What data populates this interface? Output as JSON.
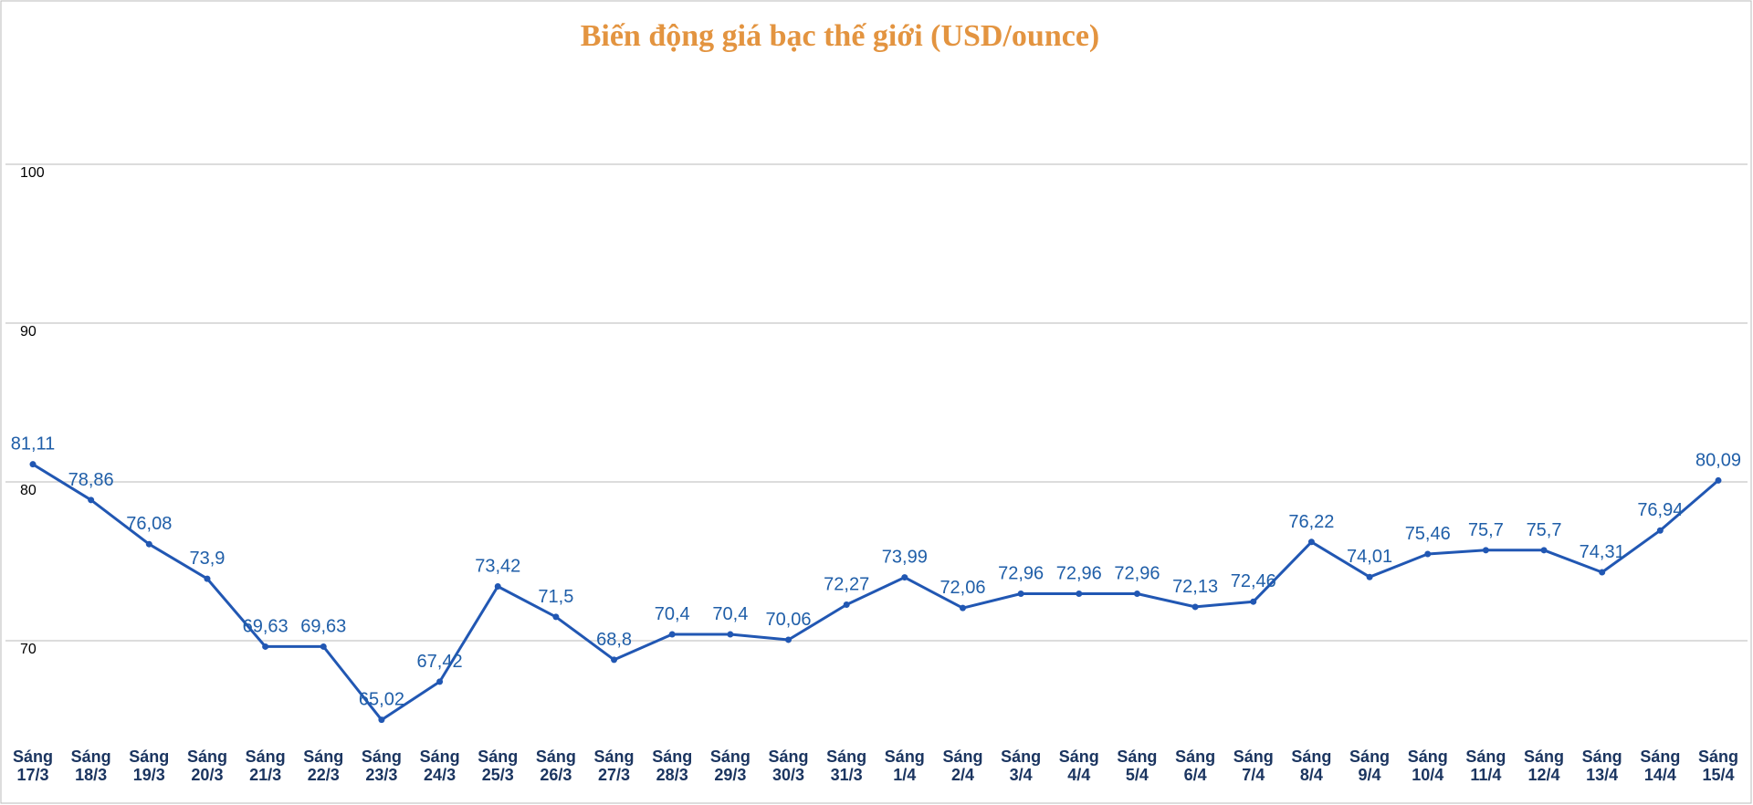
{
  "chart_data": {
    "type": "line",
    "title": "Biến động giá bạc thế giới (USD/ounce)",
    "categories": [
      "Sáng 17/3",
      "Sáng 18/3",
      "Sáng 19/3",
      "Sáng 20/3",
      "Sáng 21/3",
      "Sáng 22/3",
      "Sáng 23/3",
      "Sáng 24/3",
      "Sáng 25/3",
      "Sáng 26/3",
      "Sáng 27/3",
      "Sáng 28/3",
      "Sáng 29/3",
      "Sáng 30/3",
      "Sáng 31/3",
      "Sáng 1/4",
      "Sáng 2/4",
      "Sáng 3/4",
      "Sáng 4/4",
      "Sáng 5/4",
      "Sáng 6/4",
      "Sáng 7/4",
      "Sáng 8/4",
      "Sáng 9/4",
      "Sáng 10/4",
      "Sáng 11/4",
      "Sáng 12/4",
      "Sáng 13/4",
      "Sáng 14/4",
      "Sáng 15/4"
    ],
    "values": [
      81.11,
      78.86,
      76.08,
      73.9,
      69.63,
      69.63,
      65.02,
      67.42,
      73.42,
      71.5,
      68.8,
      70.4,
      70.4,
      70.06,
      72.27,
      73.99,
      72.06,
      72.96,
      72.96,
      72.96,
      72.13,
      72.46,
      76.22,
      74.01,
      75.46,
      75.7,
      75.7,
      74.31,
      76.94,
      80.09
    ],
    "value_labels": [
      "81,11",
      "78,86",
      "76,08",
      "73,9",
      "69,63",
      "69,63",
      "65,02",
      "67,42",
      "73,42",
      "71,5",
      "68,8",
      "70,4",
      "70,4",
      "70,06",
      "72,27",
      "73,99",
      "72,06",
      "72,96",
      "72,96",
      "72,96",
      "72,13",
      "72,46",
      "76,22",
      "74,01",
      "75,46",
      "75,7",
      "75,7",
      "74,31",
      "76,94",
      "80,09"
    ],
    "color": "#2157b3",
    "ylim": [
      60,
      110
    ],
    "yticks": [
      70,
      80,
      90,
      100
    ],
    "grid": true
  }
}
